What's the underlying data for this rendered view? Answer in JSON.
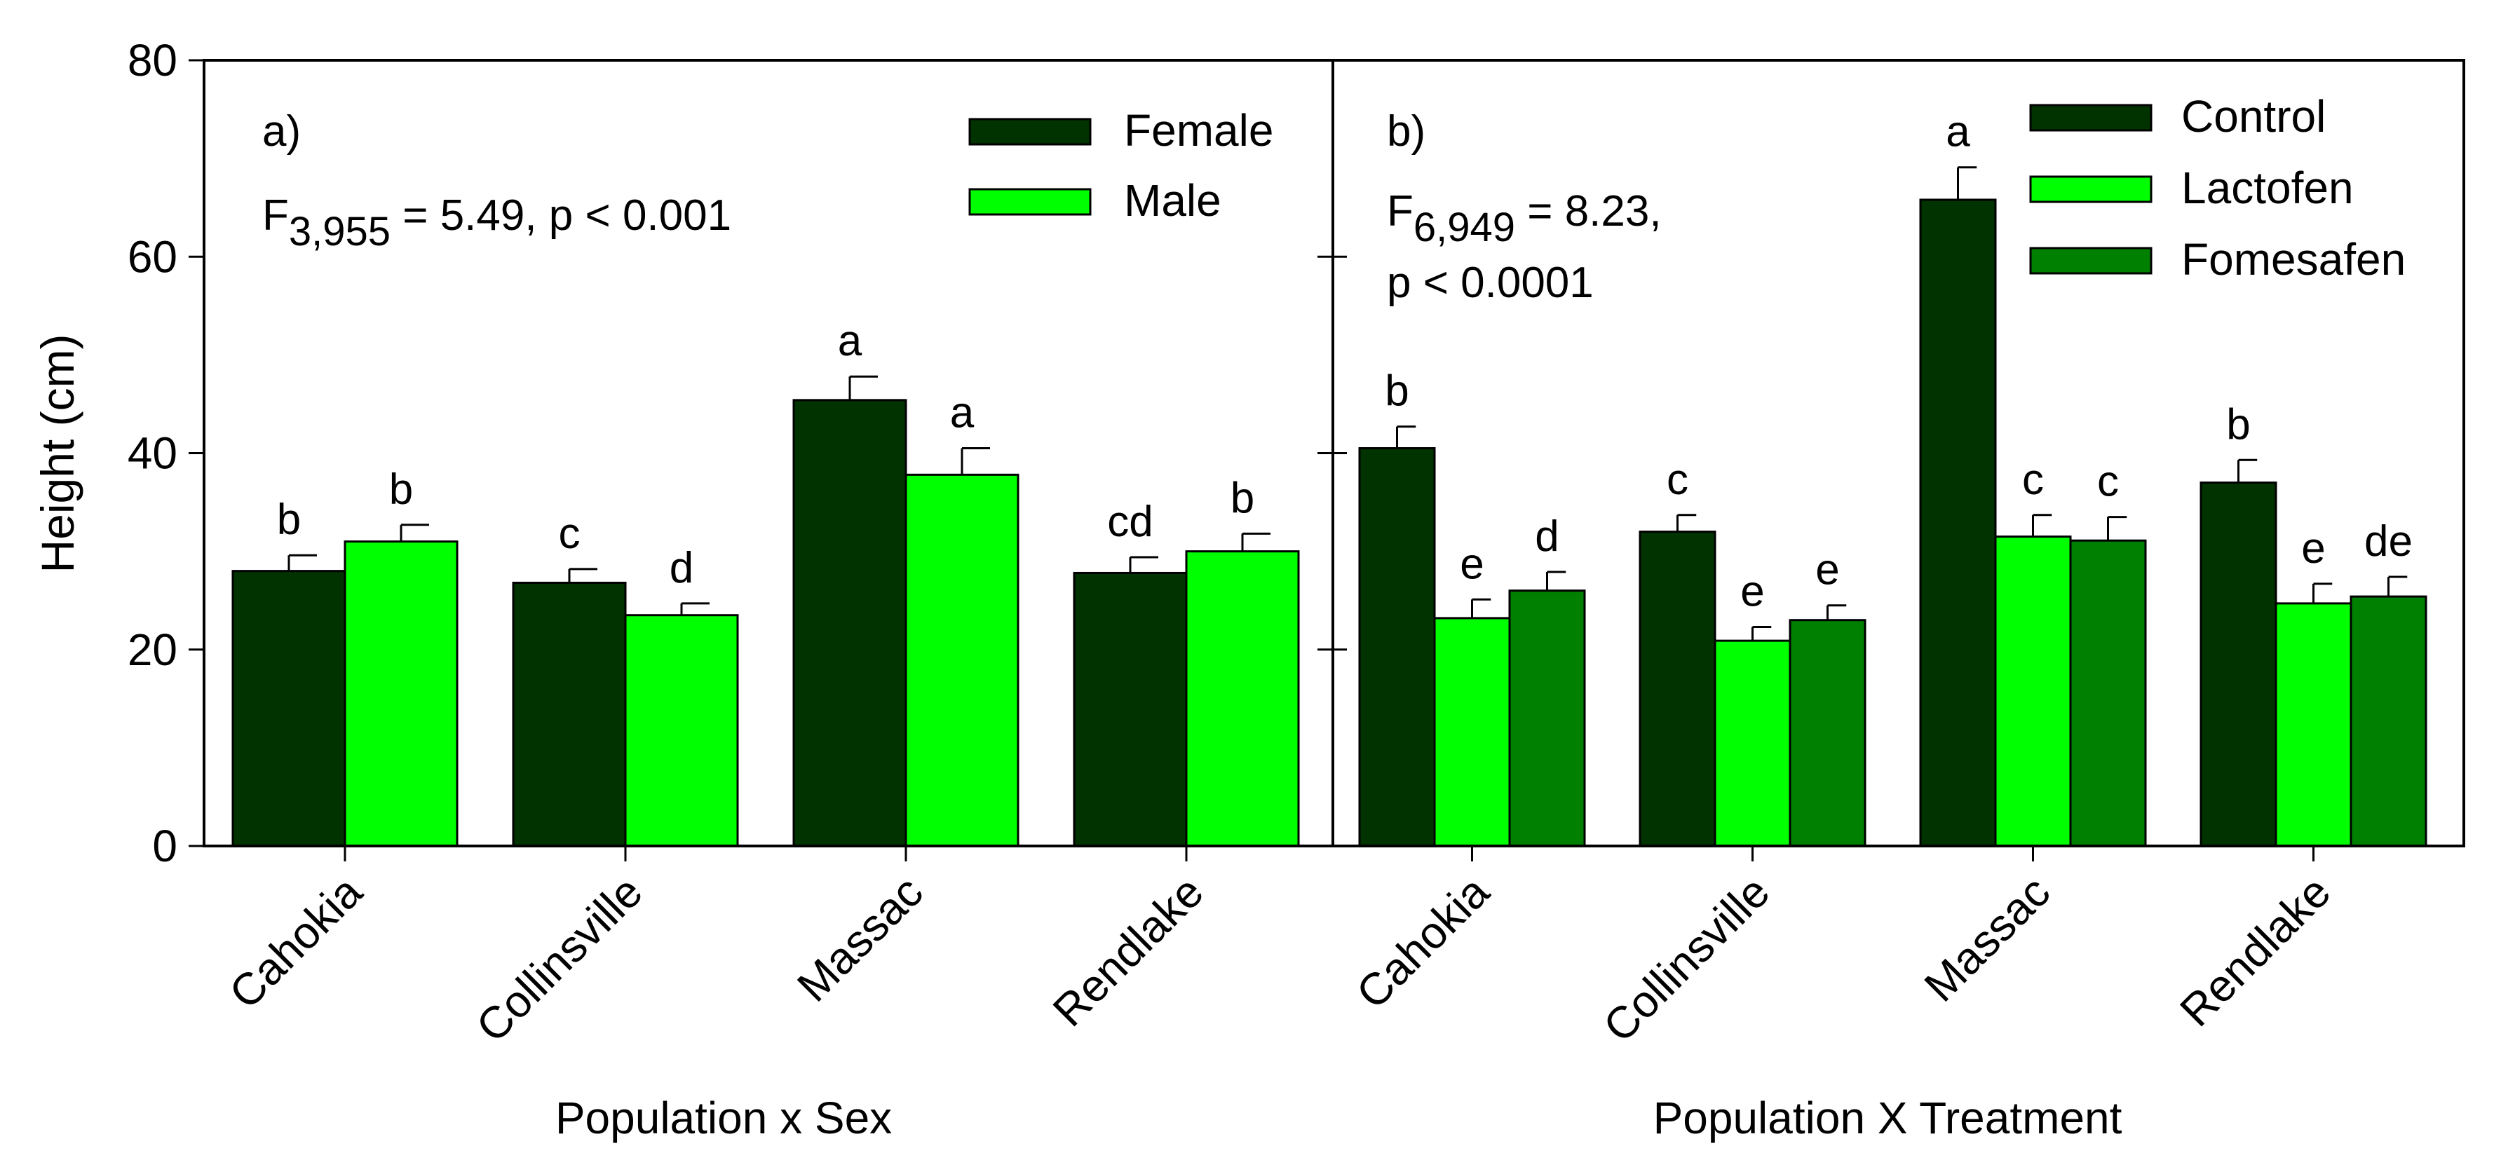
{
  "y_axis_label": "Height (cm)",
  "colors": {
    "female": "#003300",
    "male": "#00ff00",
    "control": "#003300",
    "lactofen": "#00ff00",
    "fomesafen": "#008000",
    "frame": "#000000"
  },
  "chart_data": [
    {
      "type": "bar",
      "panel": "a)",
      "stat_prefix": "F",
      "stat_sub": "3,955",
      "stat_rest": " = 5.49, p < 0.001",
      "xlabel": "Population x Sex",
      "ylabel": "Height (cm)",
      "ylim": [
        0,
        80
      ],
      "yticks": [
        "0",
        "20",
        "40",
        "60",
        "80"
      ],
      "categories": [
        "Cahokia",
        "Collinsville",
        "Massac",
        "Rendlake"
      ],
      "series": [
        {
          "name": "Female",
          "color": "#003300",
          "values": [
            28.0,
            26.8,
            45.4,
            27.8
          ],
          "errors": [
            1.6,
            1.4,
            2.4,
            1.6
          ],
          "letters": [
            "b",
            "c",
            "a",
            "cd"
          ]
        },
        {
          "name": "Male",
          "color": "#00ff00",
          "values": [
            31.0,
            23.5,
            37.8,
            30.0
          ],
          "errors": [
            1.7,
            1.2,
            2.7,
            1.8
          ],
          "letters": [
            "b",
            "d",
            "a",
            "b"
          ]
        }
      ],
      "legend": "top-right"
    },
    {
      "type": "bar",
      "panel": "b)",
      "stat_prefix": "F",
      "stat_sub": "6,949",
      "stat_rest": " = 8.23,",
      "stat_line2": "p < 0.0001",
      "xlabel": "Population X Treatment",
      "ylabel": "",
      "ylim": [
        0,
        80
      ],
      "categories": [
        "Cahokia",
        "Collinsville",
        "Massac",
        "Rendlake"
      ],
      "series": [
        {
          "name": "Control",
          "color": "#003300",
          "values": [
            40.5,
            32.0,
            65.8,
            37.0
          ],
          "errors": [
            2.2,
            1.7,
            3.3,
            2.3
          ],
          "letters": [
            "b",
            "c",
            "a",
            "b"
          ]
        },
        {
          "name": "Lactofen",
          "color": "#00ff00",
          "values": [
            23.2,
            20.9,
            31.5,
            24.7
          ],
          "errors": [
            1.9,
            1.4,
            2.2,
            2.0
          ],
          "letters": [
            "e",
            "e",
            "c",
            "e"
          ]
        },
        {
          "name": "Fomesafen",
          "color": "#008000",
          "values": [
            26.0,
            23.0,
            31.1,
            25.4
          ],
          "errors": [
            1.9,
            1.5,
            2.4,
            2.0
          ],
          "letters": [
            "d",
            "e",
            "c",
            "de"
          ]
        }
      ],
      "legend": "top-right"
    }
  ]
}
